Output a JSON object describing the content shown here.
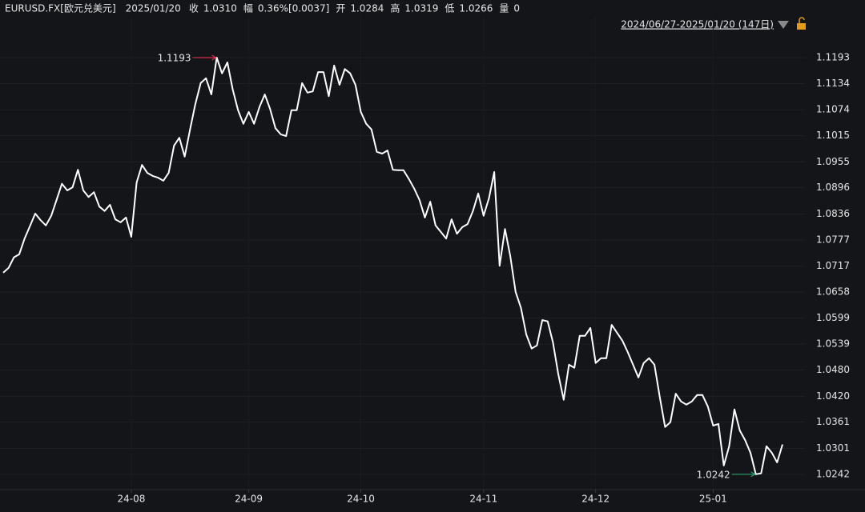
{
  "header": {
    "symbol": "EURUSD.FX[欧元兑美元]",
    "date": "2025/01/20",
    "items": [
      {
        "label": "收",
        "value": "1.0310",
        "color": "#ff2d55"
      },
      {
        "label": "幅",
        "value": "0.36%[0.0037]",
        "color": "#ff2d55"
      },
      {
        "label": "开",
        "value": "1.0284",
        "color": "#ff2d55"
      },
      {
        "label": "高",
        "value": "1.0319",
        "color": "#ff2d55"
      },
      {
        "label": "低",
        "value": "1.0266",
        "color": "#2fb37b"
      },
      {
        "label": "量",
        "value": "0",
        "color": "#e8e8e8"
      }
    ],
    "range": "2024/06/27-2025/01/20 (147日)"
  },
  "chart_data": {
    "type": "line",
    "categories": [
      null,
      null,
      null,
      null,
      null,
      null,
      null,
      null,
      null,
      null,
      null,
      null,
      null,
      null,
      null,
      null,
      null,
      null,
      null,
      null,
      null,
      null,
      null,
      null,
      "24-08",
      null,
      null,
      null,
      null,
      null,
      null,
      null,
      null,
      null,
      null,
      null,
      null,
      null,
      null,
      null,
      null,
      null,
      null,
      null,
      null,
      null,
      "24-09",
      null,
      null,
      null,
      null,
      null,
      null,
      null,
      null,
      null,
      null,
      null,
      null,
      null,
      null,
      null,
      null,
      null,
      null,
      null,
      null,
      "24-10",
      null,
      null,
      null,
      null,
      null,
      null,
      null,
      null,
      null,
      null,
      null,
      null,
      null,
      null,
      null,
      null,
      null,
      null,
      null,
      null,
      null,
      null,
      "24-11",
      null,
      null,
      null,
      null,
      null,
      null,
      null,
      null,
      null,
      null,
      null,
      null,
      null,
      null,
      null,
      null,
      null,
      null,
      null,
      null,
      "24-12",
      null,
      null,
      null,
      null,
      null,
      null,
      null,
      null,
      null,
      null,
      null,
      null,
      null,
      null,
      null,
      null,
      null,
      null,
      null,
      null,
      null,
      "25-01",
      null,
      null,
      null,
      null,
      null,
      null,
      null,
      null,
      null,
      null,
      null,
      null,
      null
    ],
    "series": [
      {
        "name": "EURUSD.FX",
        "color": "#ffffff",
        "values": [
          1.0702,
          1.0713,
          1.0737,
          1.0744,
          1.078,
          1.0808,
          1.0837,
          1.0822,
          1.081,
          1.0832,
          1.0868,
          1.0905,
          1.089,
          1.0897,
          1.0937,
          1.089,
          1.0875,
          1.0886,
          1.0853,
          1.0843,
          1.0857,
          1.0824,
          1.0817,
          1.0828,
          1.0784,
          1.0908,
          1.0948,
          1.093,
          1.0923,
          1.0919,
          1.0912,
          1.093,
          1.0992,
          1.101,
          1.0967,
          1.1029,
          1.1087,
          1.1135,
          1.1146,
          1.1109,
          1.1193,
          1.1157,
          1.1182,
          1.112,
          1.1073,
          1.1042,
          1.1069,
          1.1042,
          1.108,
          1.1109,
          1.1076,
          1.1032,
          1.1018,
          1.1014,
          1.1073,
          1.1073,
          1.1135,
          1.1113,
          1.1116,
          1.116,
          1.116,
          1.1105,
          1.1175,
          1.1131,
          1.1167,
          1.1157,
          1.1131,
          1.1069,
          1.1042,
          1.1029,
          1.0978,
          1.0974,
          1.0981,
          1.0937,
          1.0936,
          1.0936,
          1.0916,
          1.0894,
          1.0868,
          1.0828,
          1.0864,
          1.081,
          1.0795,
          1.078,
          1.0824,
          1.0791,
          1.0806,
          1.0813,
          1.0843,
          1.0883,
          1.0832,
          1.0872,
          1.0932,
          1.0718,
          1.0802,
          1.074,
          1.0658,
          1.0622,
          1.0561,
          1.0529,
          1.0536,
          1.0594,
          1.0591,
          1.0543,
          1.047,
          1.0412,
          1.0492,
          1.0485,
          1.0558,
          1.0558,
          1.0576,
          1.0496,
          1.0507,
          1.0507,
          1.0583,
          1.0565,
          1.0547,
          1.0521,
          1.0492,
          1.0463,
          1.0496,
          1.0507,
          1.0492,
          1.0419,
          1.035,
          1.0361,
          1.0426,
          1.0408,
          1.0401,
          1.0408,
          1.0423,
          1.0423,
          1.0397,
          1.0353,
          1.0357,
          1.0262,
          1.0306,
          1.039,
          1.0342,
          1.032,
          1.0291,
          1.0242,
          1.0244,
          1.0306,
          1.0291,
          1.0269,
          1.031
        ]
      }
    ],
    "ylim": [
      1.0207,
      1.1288
    ],
    "yticks": [
      1.1193,
      1.1134,
      1.1074,
      1.1015,
      1.0955,
      1.0896,
      1.0836,
      1.0777,
      1.0717,
      1.0658,
      1.0599,
      1.0539,
      {
        "value": 1.048,
        "label": "1.0480"
      },
      {
        "value": 1.042,
        "label": "1.0420"
      },
      1.0361,
      1.0301,
      1.0242
    ],
    "grid": true,
    "high_color": "#ff2d55",
    "low_color": "#2fb37b"
  }
}
